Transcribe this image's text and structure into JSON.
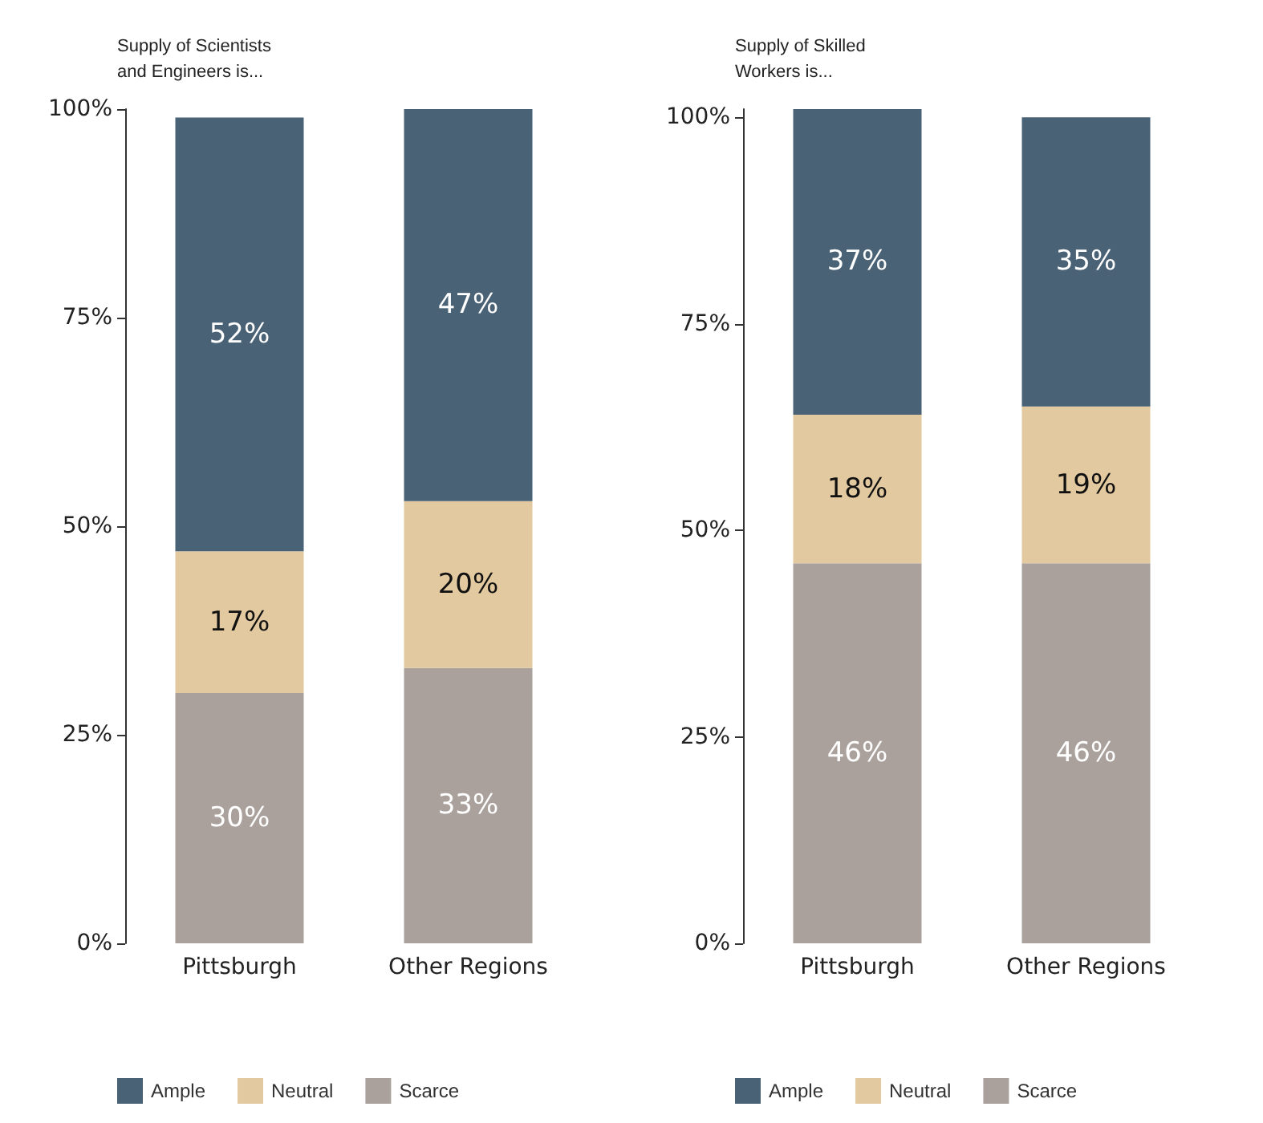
{
  "chart_data": [
    {
      "type": "bar",
      "title": "Supply of Scientists\nand Engineers is...",
      "categories": [
        "Pittsburgh",
        "Other Regions"
      ],
      "stacked": true,
      "ylim": [
        0,
        100
      ],
      "yticks": [
        {
          "value": 0,
          "label": "0%"
        },
        {
          "value": 25,
          "label": "25%"
        },
        {
          "value": 50,
          "label": "50%"
        },
        {
          "value": 75,
          "label": "75%"
        },
        {
          "value": 100,
          "label": "100%"
        }
      ],
      "grid": false,
      "legend": "bottom",
      "series": [
        {
          "name": "Scarce",
          "color": "#aaa19c",
          "values": [
            30,
            33
          ],
          "value_labels": [
            "30%",
            "33%"
          ]
        },
        {
          "name": "Neutral",
          "color": "#e2c9a0",
          "values": [
            17,
            20
          ],
          "value_labels": [
            "17%",
            "20%"
          ]
        },
        {
          "name": "Ample",
          "color": "#4a6275",
          "values": [
            52,
            47
          ],
          "value_labels": [
            "52%",
            "47%"
          ]
        }
      ]
    },
    {
      "type": "bar",
      "title": "Supply of Skilled\nWorkers is...",
      "categories": [
        "Pittsburgh",
        "Other Regions"
      ],
      "stacked": true,
      "ylim": [
        0,
        101
      ],
      "yticks": [
        {
          "value": 0,
          "label": "0%"
        },
        {
          "value": 25,
          "label": "25%"
        },
        {
          "value": 50,
          "label": "50%"
        },
        {
          "value": 75,
          "label": "75%"
        },
        {
          "value": 100,
          "label": "100%"
        }
      ],
      "grid": false,
      "legend": "bottom",
      "series": [
        {
          "name": "Scarce",
          "color": "#aaa19c",
          "values": [
            46,
            46
          ],
          "value_labels": [
            "46%",
            "46%"
          ]
        },
        {
          "name": "Neutral",
          "color": "#e2c9a0",
          "values": [
            18,
            19
          ],
          "value_labels": [
            "18%",
            "19%"
          ]
        },
        {
          "name": "Ample",
          "color": "#4a6275",
          "values": [
            37,
            35
          ],
          "value_labels": [
            "37%",
            "35%"
          ]
        }
      ]
    }
  ]
}
